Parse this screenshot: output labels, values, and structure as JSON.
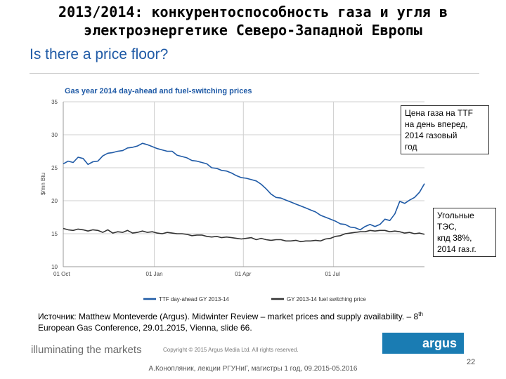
{
  "slide": {
    "title_line1": "2013/2014: конкурентоспособность газа и угля в",
    "title_line2": "электроэнергетике Северо-Западной Европы",
    "subtitle": "Is there a price floor?",
    "callout_gas": [
      "Цена газа на TTF",
      "на день вперед,",
      "2014 газовый",
      "год"
    ],
    "callout_coal": [
      "Угольные",
      "ТЭС,",
      "кпд 38%,",
      "2014 газ.г."
    ],
    "source_prefix": "Источник: Matthew Monteverde (Argus). Midwinter Review – market prices and supply availability. – 8",
    "source_sup": "th",
    "source_line2": "European Gas Conference, 29.01.2015, Vienna, slide 66.",
    "tagline": "illuminating the markets",
    "copyright": "Copyright © 2015 Argus Media Ltd. All rights reserved.",
    "logo_text": "argus",
    "page_number": "22",
    "footer": "А.Конопляник, лекции РГУНиГ, магистры 1 год, 09.2015-05.2016"
  },
  "chart_data": {
    "type": "line",
    "title": "Gas year 2014 day-ahead and fuel-switching prices",
    "ylabel": "$/mn Btu",
    "ylim": [
      10,
      35
    ],
    "yticks": [
      "10",
      "15",
      "20",
      "25",
      "30",
      "35"
    ],
    "xticks": [
      "01 Oct",
      "01 Jan",
      "01 Apr",
      "01 Jul"
    ],
    "x": [
      0,
      5,
      10,
      15,
      20,
      25,
      30,
      35,
      40,
      45,
      50,
      55,
      60,
      65,
      70,
      75,
      80,
      85,
      90,
      95,
      100,
      105,
      110,
      115,
      120,
      125,
      130,
      135,
      140,
      145,
      150,
      155,
      160,
      165,
      170,
      175,
      180,
      185,
      190,
      195,
      200,
      205,
      210,
      215,
      220,
      225,
      230,
      235,
      240,
      245,
      250,
      255,
      260,
      265,
      270,
      275,
      280,
      285,
      290,
      295,
      300,
      305,
      310,
      315,
      320,
      325,
      330,
      335,
      340,
      345,
      350,
      355,
      360,
      365
    ],
    "series": [
      {
        "name": "TTF day-ahead GY 2013-14",
        "color": "#1f5aa6",
        "values": [
          25.6,
          26.0,
          25.8,
          26.6,
          26.4,
          25.5,
          25.9,
          26.0,
          26.8,
          27.2,
          27.3,
          27.5,
          27.6,
          28.0,
          28.1,
          28.3,
          28.7,
          28.5,
          28.2,
          27.9,
          27.7,
          27.5,
          27.5,
          26.9,
          26.7,
          26.5,
          26.1,
          26.0,
          25.8,
          25.6,
          25.0,
          24.9,
          24.6,
          24.5,
          24.2,
          23.8,
          23.5,
          23.4,
          23.2,
          23.0,
          22.5,
          21.8,
          21.0,
          20.5,
          20.4,
          20.1,
          19.8,
          19.5,
          19.2,
          18.9,
          18.6,
          18.3,
          17.8,
          17.5,
          17.2,
          16.9,
          16.5,
          16.4,
          16.0,
          15.9,
          15.6,
          16.1,
          16.4,
          16.1,
          16.4,
          17.2,
          17.0,
          18.0,
          19.9,
          19.6,
          20.1,
          20.5,
          21.3,
          22.6
        ]
      },
      {
        "name": "GY 2013-14 fuel switching price",
        "color": "#333333",
        "values": [
          15.8,
          15.6,
          15.5,
          15.7,
          15.6,
          15.4,
          15.6,
          15.5,
          15.2,
          15.6,
          15.1,
          15.3,
          15.2,
          15.5,
          15.1,
          15.2,
          15.4,
          15.2,
          15.3,
          15.1,
          15.0,
          15.2,
          15.1,
          15.0,
          15.0,
          14.9,
          14.7,
          14.8,
          14.8,
          14.6,
          14.5,
          14.6,
          14.4,
          14.5,
          14.4,
          14.3,
          14.2,
          14.3,
          14.4,
          14.1,
          14.3,
          14.1,
          14.0,
          14.1,
          14.1,
          13.9,
          13.9,
          14.0,
          13.8,
          13.9,
          13.9,
          14.0,
          13.9,
          14.2,
          14.3,
          14.6,
          14.7,
          15.0,
          15.1,
          15.2,
          15.3,
          15.3,
          15.5,
          15.4,
          15.5,
          15.5,
          15.3,
          15.4,
          15.3,
          15.1,
          15.2,
          15.0,
          15.1,
          14.9
        ]
      }
    ],
    "grid": true,
    "legend": "bottom"
  }
}
